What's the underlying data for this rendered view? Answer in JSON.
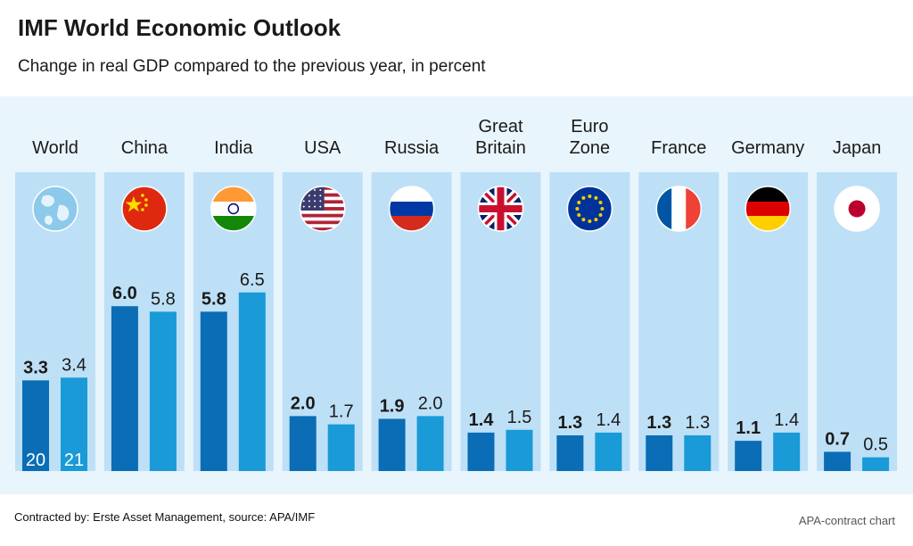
{
  "header": {
    "title": "IMF World Economic Outlook",
    "subtitle": "Change in real GDP compared to the previous year, in percent"
  },
  "footer": {
    "source": "Contracted by: Erste Asset Management, source: APA/IMF",
    "credit": "APA-contract chart"
  },
  "chart_data": {
    "type": "bar",
    "title": "IMF World Economic Outlook",
    "subtitle": "Change in real GDP compared to the previous year, in percent",
    "categories": [
      {
        "name": "World",
        "lines": [
          "World"
        ],
        "icon": "globe-icon"
      },
      {
        "name": "China",
        "lines": [
          "China"
        ],
        "icon": "china-flag-icon"
      },
      {
        "name": "India",
        "lines": [
          "India"
        ],
        "icon": "india-flag-icon"
      },
      {
        "name": "USA",
        "lines": [
          "USA"
        ],
        "icon": "usa-flag-icon"
      },
      {
        "name": "Russia",
        "lines": [
          "Russia"
        ],
        "icon": "russia-flag-icon"
      },
      {
        "name": "Great Britain",
        "lines": [
          "Great",
          "Britain"
        ],
        "icon": "uk-flag-icon"
      },
      {
        "name": "Euro Zone",
        "lines": [
          "Euro",
          "Zone"
        ],
        "icon": "eu-flag-icon"
      },
      {
        "name": "France",
        "lines": [
          "France"
        ],
        "icon": "france-flag-icon"
      },
      {
        "name": "Germany",
        "lines": [
          "Germany"
        ],
        "icon": "germany-flag-icon"
      },
      {
        "name": "Japan",
        "lines": [
          "Japan"
        ],
        "icon": "japan-flag-icon"
      }
    ],
    "series": [
      {
        "name": "20",
        "color": "#0a6db5",
        "values": [
          3.3,
          6.0,
          5.8,
          2.0,
          1.9,
          1.4,
          1.3,
          1.3,
          1.1,
          0.7
        ]
      },
      {
        "name": "21",
        "color": "#1a9ad6",
        "values": [
          3.4,
          5.8,
          6.5,
          1.7,
          2.0,
          1.5,
          1.4,
          1.3,
          1.4,
          0.5
        ]
      }
    ],
    "value_labels": [
      [
        "3.3",
        "6.0",
        "5.8",
        "2.0",
        "1.9",
        "1.4",
        "1.3",
        "1.3",
        "1.1",
        "0.7"
      ],
      [
        "3.4",
        "5.8",
        "6.5",
        "1.7",
        "2.0",
        "1.5",
        "1.4",
        "1.3",
        "1.4",
        "0.5"
      ]
    ],
    "ylim": [
      0,
      8
    ],
    "grid": false,
    "legend": "inside-first-bars"
  }
}
